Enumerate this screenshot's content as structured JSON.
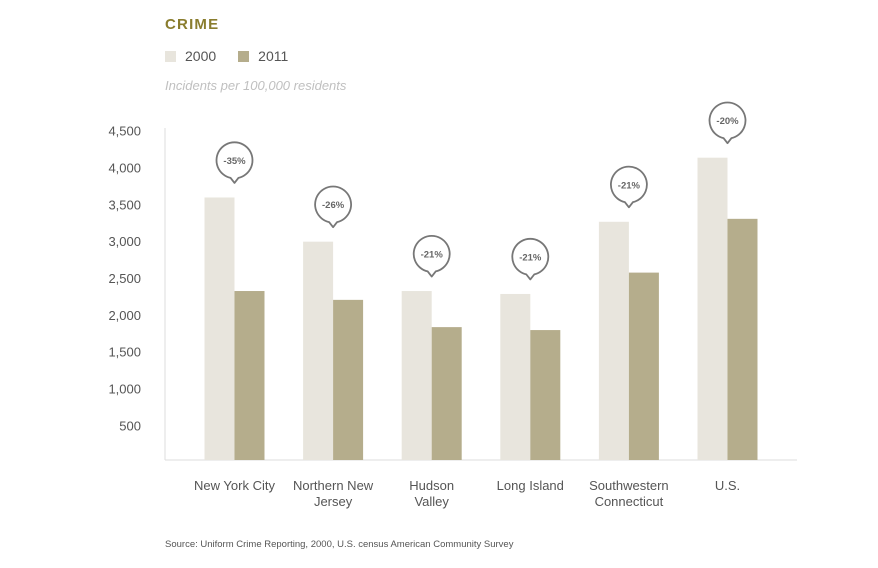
{
  "chart_data": {
    "type": "bar",
    "title": "CRIME",
    "subtitle": "Incidents per 100,000 residents",
    "source": "Source: Uniform Crime Reporting, 2000, U.S. census American Community Survey",
    "categories": [
      [
        "New York City"
      ],
      [
        "Northern New",
        "Jersey"
      ],
      [
        "Hudson",
        "Valley"
      ],
      [
        "Long Island"
      ],
      [
        "Southwestern",
        "Connecticut"
      ],
      [
        "U.S."
      ]
    ],
    "series": [
      {
        "name": "2000",
        "color": "#e8e5dd",
        "values": [
          3600,
          3000,
          2330,
          2290,
          3270,
          4140
        ]
      },
      {
        "name": "2011",
        "color": "#b5ad8c",
        "values": [
          2330,
          2210,
          1840,
          1800,
          2580,
          3310
        ]
      }
    ],
    "annotations": [
      "-35%",
      "-26%",
      "-21%",
      "-21%",
      "-21%",
      "-20%"
    ],
    "yticks": [
      500,
      1000,
      1500,
      2000,
      2500,
      3000,
      3500,
      4000,
      4500
    ],
    "ytick_labels": [
      "500",
      "1,000",
      "1,500",
      "2,000",
      "2,500",
      "3,000",
      "3,500",
      "4,000",
      "4,500"
    ],
    "ylim": [
      0,
      4500
    ],
    "grid": false,
    "legend_position": "top-left"
  }
}
